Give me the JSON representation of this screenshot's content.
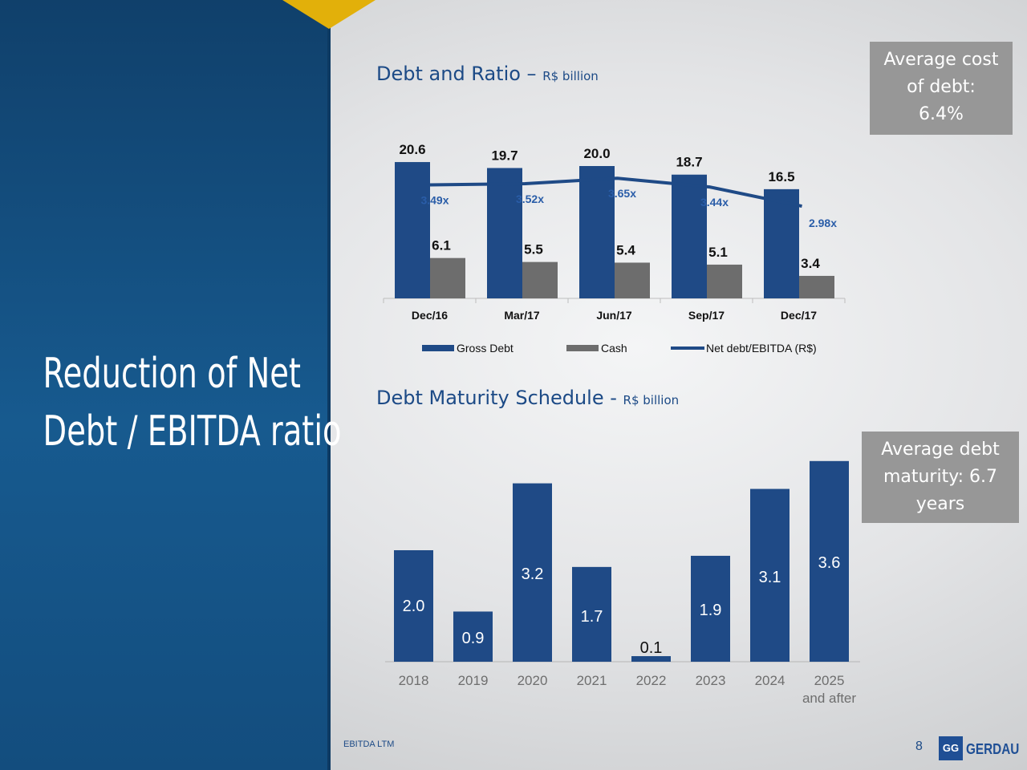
{
  "slide": {
    "left_title_lines": [
      "Reduction of Net",
      "Debt / EBITDA ratio"
    ],
    "footnote": "EBITDA LTM",
    "page_number": "8",
    "logo_text": "GERDAU",
    "logo_mark": "GG",
    "colors": {
      "navy": "#1f4a86",
      "gray_bar": "#6d6d6d",
      "panel": "#134d7e",
      "gold": "#e2b00a"
    }
  },
  "debt_chart_title": {
    "main": "Debt and Ratio – ",
    "unit": "R$ billion"
  },
  "maturity_chart_title": {
    "main": "Debt Maturity Schedule - ",
    "unit": "R$ billion"
  },
  "cost_box": {
    "lines": [
      "Average cost",
      "of debt:",
      "6.4%"
    ]
  },
  "maturity_box": {
    "lines": [
      "Average debt",
      "maturity: 6.7",
      "years"
    ]
  },
  "chart_data": [
    {
      "type": "bar",
      "categories": [
        "Dec/16",
        "Mar/17",
        "Jun/17",
        "Sep/17",
        "Dec/17"
      ],
      "series": [
        {
          "name": "Gross Debt",
          "type": "bar",
          "values": [
            20.6,
            19.7,
            20.0,
            18.7,
            16.5
          ],
          "labels": [
            "20.6",
            "19.7",
            "20.0",
            "18.7",
            "16.5"
          ],
          "color": "#1f4a86"
        },
        {
          "name": "Cash",
          "type": "bar",
          "values": [
            6.1,
            5.5,
            5.4,
            5.1,
            3.4
          ],
          "labels": [
            "6.1",
            "5.5",
            "5.4",
            "5.1",
            "3.4"
          ],
          "color": "#6d6d6d"
        },
        {
          "name": "Net debt/EBITDA (R$)",
          "type": "line",
          "values": [
            3.49,
            3.52,
            3.65,
            3.44,
            2.98
          ],
          "labels": [
            "3.49x",
            "3.52x",
            "3.65x",
            "3.44x",
            "2.98x"
          ],
          "color": "#1f4a86"
        }
      ],
      "legend_position": "bottom"
    },
    {
      "type": "bar",
      "categories": [
        "2018",
        "2019",
        "2020",
        "2021",
        "2022",
        "2023",
        "2024",
        "2025"
      ],
      "category_sublabels": [
        "",
        "",
        "",
        "",
        "",
        "",
        "",
        "and after"
      ],
      "values": [
        2.0,
        0.9,
        3.2,
        1.7,
        0.1,
        1.9,
        3.1,
        3.6
      ],
      "labels": [
        "2.0",
        "0.9",
        "3.2",
        "1.7",
        "0.1",
        "1.9",
        "3.1",
        "3.6"
      ],
      "color": "#1f4a86"
    }
  ]
}
